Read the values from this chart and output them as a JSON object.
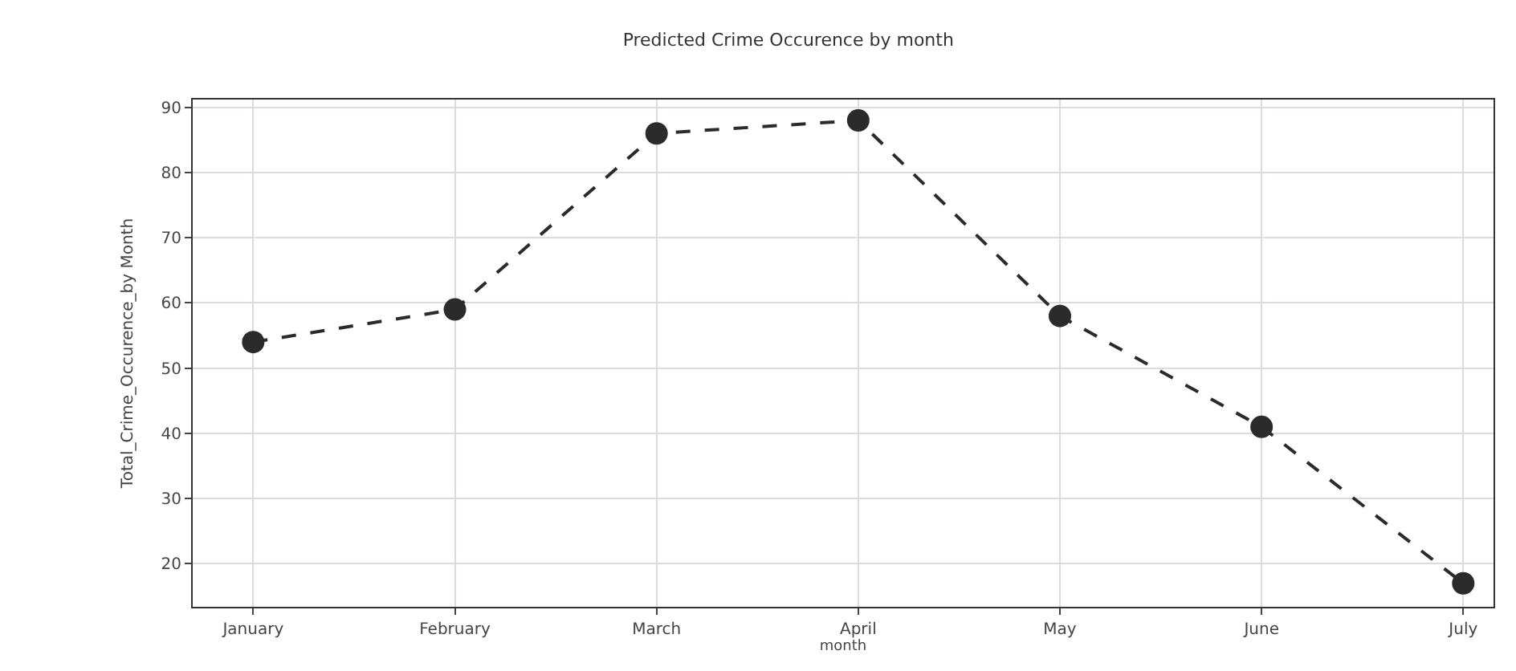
{
  "chart_data": {
    "type": "line",
    "title": "Predicted Crime Occurence by month",
    "xlabel": "month",
    "ylabel": "Total_Crime_Occurence_by Month",
    "categories": [
      "January",
      "February",
      "March",
      "April",
      "May",
      "June",
      "July"
    ],
    "series": [
      {
        "color": "#2b2b2b",
        "values": [
          54,
          59,
          86,
          88,
          58,
          41,
          17
        ]
      }
    ],
    "ylim": [
      13.4,
      91.2
    ],
    "yticks": [
      20,
      30,
      40,
      50,
      60,
      70,
      80,
      90
    ],
    "grid": true,
    "marker": "circle",
    "line_style": "dashed"
  }
}
